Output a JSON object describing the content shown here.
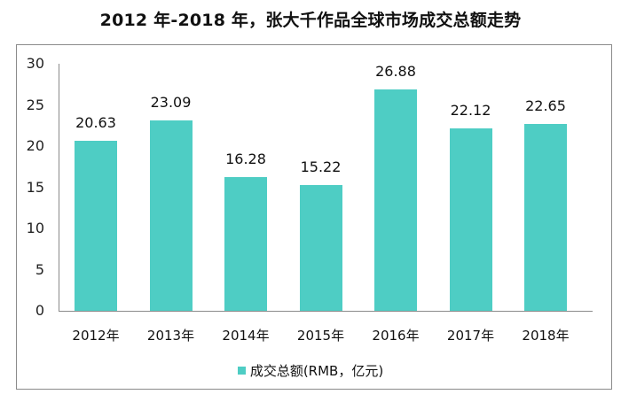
{
  "chart_data": {
    "type": "bar",
    "title": "2012 年-2018 年，张大千作品全球市场成交总额走势",
    "categories": [
      "2012年",
      "2013年",
      "2014年",
      "2015年",
      "2016年",
      "2017年",
      "2018年"
    ],
    "series": [
      {
        "name": "成交总额(RMB，亿元)",
        "values": [
          20.63,
          23.09,
          16.28,
          15.22,
          26.88,
          22.12,
          22.65
        ],
        "color": "#4ecdc4"
      }
    ],
    "data_labels": [
      "20.63",
      "23.09",
      "16.28",
      "15.22",
      "26.88",
      "22.12",
      "22.65"
    ],
    "xlabel": "",
    "ylabel": "",
    "ylim": [
      0,
      30
    ],
    "yticks": [
      "0",
      "5",
      "10",
      "15",
      "20",
      "25",
      "30"
    ],
    "grid": false,
    "legend_position": "bottom"
  },
  "title": "2012 年-2018 年，张大千作品全球市场成交总额走势",
  "legend": {
    "label": "成交总额(RMB，亿元)"
  }
}
